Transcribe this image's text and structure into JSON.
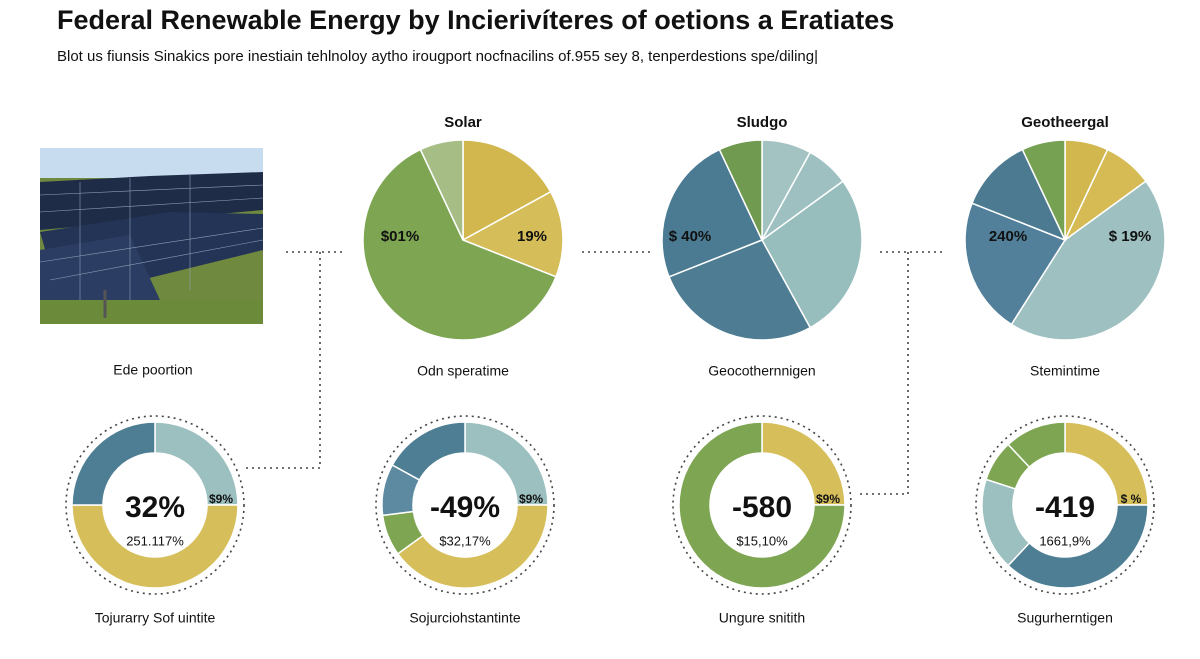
{
  "header": {
    "title": "Federal Renewable Energy by Incierivíteres of oetions a Eratiates",
    "subtitle": "Blot us fiunsis Sinakics pore inestiain tehlnoloy aytho irougport nocfnacilins of.955 sey 8, tenperdestions spe/diling|"
  },
  "photo": {
    "caption": "Ede poortion"
  },
  "chart_data": [
    {
      "type": "pie",
      "title": "Solar",
      "caption": "Odn speratime",
      "values": [
        17,
        14,
        62,
        7
      ],
      "colors": [
        "#d2b64e",
        "#d5be59",
        "#7ea552",
        "#a6be86"
      ],
      "annotations": [
        "$01%",
        "19%"
      ]
    },
    {
      "type": "pie",
      "title": "Sludgo",
      "caption": "Geocothernnigen",
      "values": [
        8,
        7,
        27,
        27,
        24,
        7
      ],
      "colors": [
        "#a3c3c3",
        "#9fc0c1",
        "#97bdbd",
        "#4e7d93",
        "#4a7b92",
        "#6f9a4f"
      ],
      "annotations": [
        "$ 40%"
      ]
    },
    {
      "type": "pie",
      "title": "Geotheergal",
      "caption": "Stemintime",
      "values": [
        7,
        8,
        44,
        22,
        12,
        7
      ],
      "colors": [
        "#d2b64e",
        "#d6bb55",
        "#9ec0c0",
        "#52809a",
        "#4b7a91",
        "#76a153"
      ],
      "annotations": [
        "240%",
        "$ 19%"
      ]
    },
    {
      "type": "donut",
      "caption": "Tojurarry Sof uintite",
      "center_label": "32%",
      "sub_label": "251.117%",
      "side_label": "$9%",
      "values": [
        25,
        50,
        25
      ],
      "colors": [
        "#9cc0c0",
        "#d6bf5b",
        "#4e7e93"
      ]
    },
    {
      "type": "donut",
      "caption": "Sojurciohstantinte",
      "center_label": "-49%",
      "sub_label": "$32,17%",
      "side_label": "$9%",
      "values": [
        25,
        40,
        8,
        10,
        17
      ],
      "colors": [
        "#9cc0c0",
        "#d6bf5b",
        "#7ea552",
        "#5d8aa0",
        "#4e7e93"
      ]
    },
    {
      "type": "donut",
      "caption": "Ungure snitith",
      "center_label": "-580",
      "sub_label": "$15,10%",
      "side_label": "$9%",
      "values": [
        25,
        75
      ],
      "colors": [
        "#d6bf5b",
        "#7ea552"
      ]
    },
    {
      "type": "donut",
      "caption": "Sugurherntigen",
      "center_label": "-419",
      "sub_label": "1661,9%",
      "side_label": "$ %",
      "values": [
        25,
        37,
        18,
        8,
        12
      ],
      "colors": [
        "#d6bf5b",
        "#4e7e93",
        "#9cc0c0",
        "#7ea552",
        "#7ea552"
      ]
    }
  ]
}
